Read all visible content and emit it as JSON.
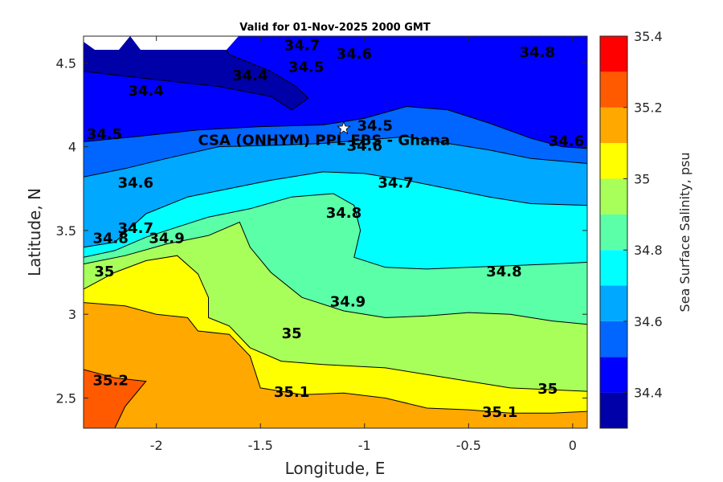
{
  "chart_data": {
    "type": "contour",
    "title": "Valid for 01-Nov-2025 2000 GMT",
    "xlabel": "Longitude, E",
    "ylabel": "Latitude, N",
    "xlim": [
      -2.35,
      0.07
    ],
    "ylim": [
      2.32,
      4.66
    ],
    "x_ticks": [
      -2,
      -1.5,
      -1,
      -0.5,
      0
    ],
    "x_tick_labels": [
      "-2",
      "-1.5",
      "-1",
      "-0.5",
      "0"
    ],
    "y_ticks": [
      2.5,
      3,
      3.5,
      4,
      4.5
    ],
    "y_tick_labels": [
      "2.5",
      "3",
      "3.5",
      "4",
      "4.5"
    ],
    "colorbar": {
      "label": "Sea Surface Salinity, psu",
      "levels": [
        34.3,
        34.4,
        34.5,
        34.6,
        34.7,
        34.8,
        34.9,
        35.0,
        35.1,
        35.2,
        35.3,
        35.4
      ],
      "tick_values": [
        34.4,
        34.6,
        34.8,
        35.0,
        35.2,
        35.4
      ],
      "tick_labels": [
        "34.4",
        "34.6",
        "34.8",
        "35",
        "35.2",
        "35.4"
      ],
      "colors": [
        "#0000a8",
        "#0000ff",
        "#0066ff",
        "#00a8ff",
        "#00ffff",
        "#5affa8",
        "#a8ff5a",
        "#ffff00",
        "#ffa800",
        "#ff5a00",
        "#ff0000"
      ]
    },
    "contours": [
      {
        "level": 34.4,
        "label": "34.4",
        "points": [
          [
            -2.35,
            4.45
          ],
          [
            -2.0,
            4.4
          ],
          [
            -1.7,
            4.36
          ],
          [
            -1.45,
            4.3
          ],
          [
            -1.35,
            4.22
          ],
          [
            -1.27,
            4.29
          ],
          [
            -1.33,
            4.36
          ],
          [
            -1.45,
            4.45
          ],
          [
            -1.65,
            4.55
          ],
          [
            -1.7,
            4.66
          ]
        ]
      },
      {
        "level": 34.5,
        "label": "34.5",
        "points": [
          [
            -2.35,
            4.03
          ],
          [
            -2.1,
            4.06
          ],
          [
            -1.8,
            4.1
          ],
          [
            -1.5,
            4.12
          ],
          [
            -1.2,
            4.13
          ],
          [
            -1.0,
            4.17
          ],
          [
            -0.8,
            4.24
          ],
          [
            -0.6,
            4.22
          ],
          [
            -0.4,
            4.14
          ],
          [
            -0.2,
            4.05
          ],
          [
            -0.05,
            4.0
          ],
          [
            0.07,
            3.99
          ]
        ]
      },
      {
        "level": 34.6,
        "label": "34.6",
        "points": [
          [
            -2.35,
            3.82
          ],
          [
            -2.15,
            3.87
          ],
          [
            -1.95,
            3.93
          ],
          [
            -1.7,
            4.0
          ],
          [
            -1.4,
            4.01
          ],
          [
            -1.2,
            4.02
          ],
          [
            -1.0,
            4.04
          ],
          [
            -0.8,
            4.06
          ],
          [
            -0.6,
            4.02
          ],
          [
            -0.4,
            3.98
          ],
          [
            -0.2,
            3.93
          ],
          [
            0.07,
            3.9
          ]
        ]
      },
      {
        "level": 34.7,
        "label": "34.7",
        "points": [
          [
            -2.35,
            3.4
          ],
          [
            -2.2,
            3.43
          ],
          [
            -2.05,
            3.6
          ],
          [
            -1.85,
            3.7
          ],
          [
            -1.65,
            3.75
          ],
          [
            -1.45,
            3.8
          ],
          [
            -1.2,
            3.85
          ],
          [
            -1.0,
            3.84
          ],
          [
            -0.8,
            3.8
          ],
          [
            -0.6,
            3.75
          ],
          [
            -0.4,
            3.7
          ],
          [
            -0.2,
            3.66
          ],
          [
            0.07,
            3.65
          ]
        ]
      },
      {
        "level": 34.8,
        "label": "34.8",
        "points": [
          [
            -2.35,
            3.34
          ],
          [
            -2.2,
            3.38
          ],
          [
            -2.05,
            3.46
          ],
          [
            -1.9,
            3.52
          ],
          [
            -1.75,
            3.58
          ],
          [
            -1.55,
            3.63
          ],
          [
            -1.35,
            3.7
          ],
          [
            -1.15,
            3.72
          ],
          [
            -1.05,
            3.65
          ],
          [
            -1.02,
            3.5
          ],
          [
            -1.05,
            3.34
          ],
          [
            -0.9,
            3.28
          ],
          [
            -0.7,
            3.27
          ],
          [
            -0.5,
            3.28
          ],
          [
            -0.3,
            3.29
          ],
          [
            -0.1,
            3.3
          ],
          [
            0.07,
            3.31
          ]
        ]
      },
      {
        "level": 34.9,
        "label": "34.9",
        "points": [
          [
            -2.35,
            3.3
          ],
          [
            -2.15,
            3.35
          ],
          [
            -1.95,
            3.42
          ],
          [
            -1.75,
            3.47
          ],
          [
            -1.6,
            3.55
          ],
          [
            -1.55,
            3.4
          ],
          [
            -1.45,
            3.25
          ],
          [
            -1.3,
            3.1
          ],
          [
            -1.1,
            3.02
          ],
          [
            -0.9,
            2.98
          ],
          [
            -0.7,
            2.99
          ],
          [
            -0.5,
            3.01
          ],
          [
            -0.3,
            3.0
          ],
          [
            -0.1,
            2.96
          ],
          [
            0.07,
            2.94
          ]
        ]
      },
      {
        "level": 35.0,
        "label": "35",
        "points": [
          [
            -2.35,
            3.15
          ],
          [
            -2.2,
            3.25
          ],
          [
            -2.05,
            3.32
          ],
          [
            -1.9,
            3.35
          ],
          [
            -1.8,
            3.24
          ],
          [
            -1.75,
            3.1
          ],
          [
            -1.75,
            2.98
          ],
          [
            -1.65,
            2.93
          ],
          [
            -1.55,
            2.8
          ],
          [
            -1.4,
            2.72
          ],
          [
            -1.2,
            2.7
          ],
          [
            -0.9,
            2.68
          ],
          [
            -0.6,
            2.62
          ],
          [
            -0.3,
            2.56
          ],
          [
            0.07,
            2.54
          ]
        ]
      },
      {
        "level": 35.1,
        "label": "35.1",
        "points": [
          [
            -2.35,
            3.07
          ],
          [
            -2.15,
            3.05
          ],
          [
            -2.0,
            3.0
          ],
          [
            -1.85,
            2.98
          ],
          [
            -1.8,
            2.9
          ],
          [
            -1.65,
            2.88
          ],
          [
            -1.55,
            2.75
          ],
          [
            -1.5,
            2.56
          ],
          [
            -1.3,
            2.52
          ],
          [
            -1.1,
            2.53
          ],
          [
            -0.9,
            2.5
          ],
          [
            -0.7,
            2.44
          ],
          [
            -0.5,
            2.43
          ],
          [
            -0.3,
            2.41
          ],
          [
            -0.1,
            2.41
          ],
          [
            0.07,
            2.42
          ]
        ]
      },
      {
        "level": 35.2,
        "label": "35.2",
        "points": [
          [
            -2.35,
            2.67
          ],
          [
            -2.2,
            2.62
          ],
          [
            -2.05,
            2.6
          ],
          [
            -2.15,
            2.45
          ],
          [
            -2.2,
            2.32
          ]
        ]
      }
    ],
    "contour_labels": [
      {
        "text": "34.7",
        "x": -1.3,
        "y": 4.6
      },
      {
        "text": "34.6",
        "x": -1.05,
        "y": 4.55
      },
      {
        "text": "34.5",
        "x": -1.28,
        "y": 4.47
      },
      {
        "text": "34.4",
        "x": -1.55,
        "y": 4.42
      },
      {
        "text": "34.4",
        "x": -2.05,
        "y": 4.33
      },
      {
        "text": "34.8",
        "x": -0.17,
        "y": 4.56
      },
      {
        "text": "34.5",
        "x": -2.25,
        "y": 4.07
      },
      {
        "text": "34.5",
        "x": -0.95,
        "y": 4.12
      },
      {
        "text": "34.6",
        "x": -1.0,
        "y": 4.0
      },
      {
        "text": "34.6",
        "x": -0.03,
        "y": 4.03
      },
      {
        "text": "34.6",
        "x": -2.1,
        "y": 3.78
      },
      {
        "text": "34.7",
        "x": -0.85,
        "y": 3.78
      },
      {
        "text": "34.7",
        "x": -2.1,
        "y": 3.51
      },
      {
        "text": "34.8",
        "x": -2.22,
        "y": 3.45
      },
      {
        "text": "34.8",
        "x": -1.1,
        "y": 3.6
      },
      {
        "text": "34.9",
        "x": -1.95,
        "y": 3.45
      },
      {
        "text": "35",
        "x": -2.25,
        "y": 3.25
      },
      {
        "text": "34.8",
        "x": -0.33,
        "y": 3.25
      },
      {
        "text": "34.9",
        "x": -1.08,
        "y": 3.07
      },
      {
        "text": "35",
        "x": -1.35,
        "y": 2.88
      },
      {
        "text": "35.2",
        "x": -2.22,
        "y": 2.6
      },
      {
        "text": "35.1",
        "x": -1.35,
        "y": 2.53
      },
      {
        "text": "35",
        "x": -0.12,
        "y": 2.55
      },
      {
        "text": "35.1",
        "x": -0.35,
        "y": 2.41
      }
    ],
    "marker": {
      "x": -1.1,
      "y": 4.11,
      "symbol": "white star"
    },
    "annotation": {
      "text": "CSA (ONHYM) PPL EBS  - Ghana",
      "x": -1.8,
      "y": 4.04
    }
  }
}
